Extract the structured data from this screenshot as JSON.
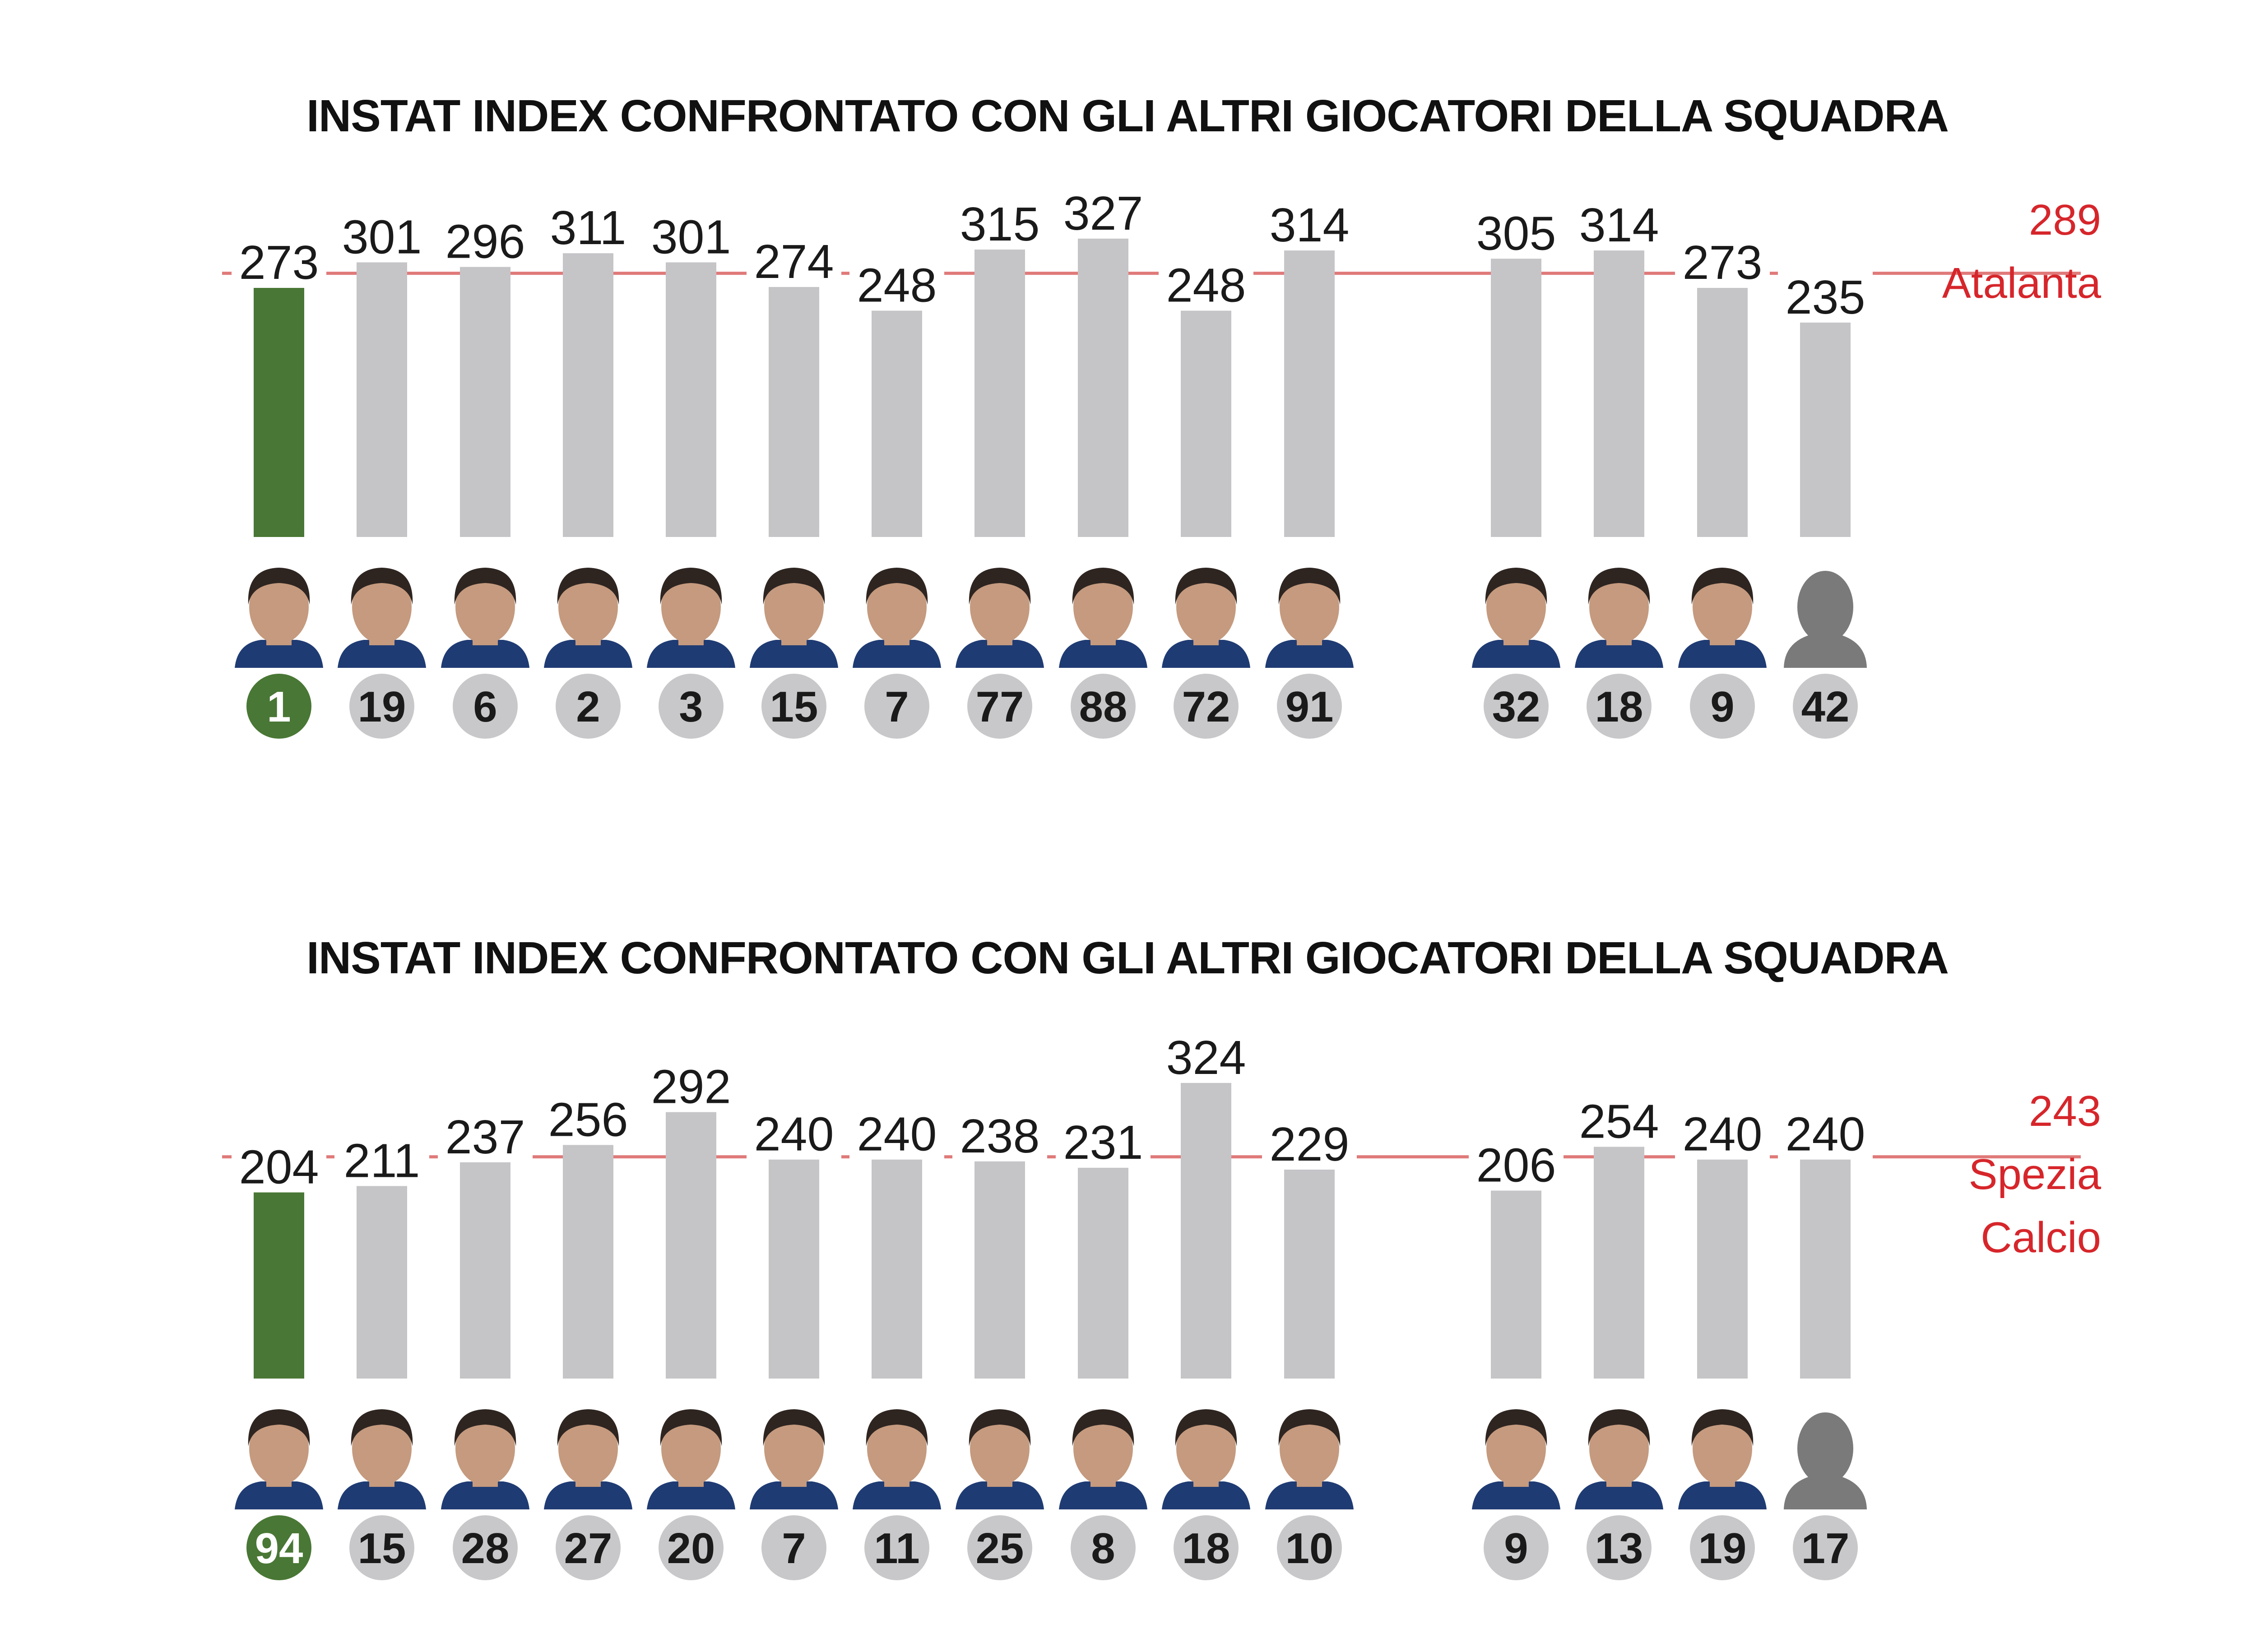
{
  "colors": {
    "highlight_bar": "#497735",
    "bar": "#c5c4c7",
    "average_line": "#e07a7a",
    "average_text": "#d6262b",
    "badge": "#c8c8ca",
    "face": "#c59a7e",
    "hair": "#2e2521",
    "shirt": "#1f3b73",
    "silhouette": "#7a7a7a"
  },
  "chart_data": [
    {
      "type": "bar",
      "title": "INSTAT INDEX CONFRONTATO CON GLI ALTRI GIOCATORI DELLA SQUADRA",
      "team": "Atalanta",
      "average": 289,
      "highlight_index": 0,
      "categories": [
        "1",
        "19",
        "6",
        "2",
        "3",
        "15",
        "7",
        "77",
        "88",
        "72",
        "91",
        "32",
        "18",
        "9",
        "42"
      ],
      "values": [
        273,
        301,
        296,
        311,
        301,
        274,
        248,
        315,
        327,
        248,
        314,
        305,
        314,
        273,
        235
      ],
      "photo": [
        "face",
        "face",
        "face",
        "face",
        "face",
        "face",
        "face",
        "face",
        "face",
        "face",
        "face",
        "face",
        "face",
        "face",
        "silhouette"
      ],
      "groups": [
        "starters",
        "starters",
        "starters",
        "starters",
        "starters",
        "starters",
        "starters",
        "starters",
        "starters",
        "starters",
        "starters",
        "subs",
        "subs",
        "subs",
        "subs"
      ]
    },
    {
      "type": "bar",
      "title": "INSTAT INDEX CONFRONTATO CON GLI ALTRI GIOCATORI DELLA SQUADRA",
      "team": "Spezia Calcio",
      "average": 243,
      "highlight_index": 0,
      "categories": [
        "94",
        "15",
        "28",
        "27",
        "20",
        "7",
        "11",
        "25",
        "8",
        "18",
        "10",
        "9",
        "13",
        "19",
        "17"
      ],
      "values": [
        204,
        211,
        237,
        256,
        292,
        240,
        240,
        238,
        231,
        324,
        229,
        206,
        254,
        240,
        240
      ],
      "photo": [
        "face",
        "face",
        "face",
        "face",
        "face",
        "face",
        "face",
        "face",
        "face",
        "face",
        "face",
        "face",
        "face",
        "face",
        "silhouette"
      ],
      "groups": [
        "starters",
        "starters",
        "starters",
        "starters",
        "starters",
        "starters",
        "starters",
        "starters",
        "starters",
        "starters",
        "starters",
        "subs",
        "subs",
        "subs",
        "subs"
      ]
    }
  ]
}
